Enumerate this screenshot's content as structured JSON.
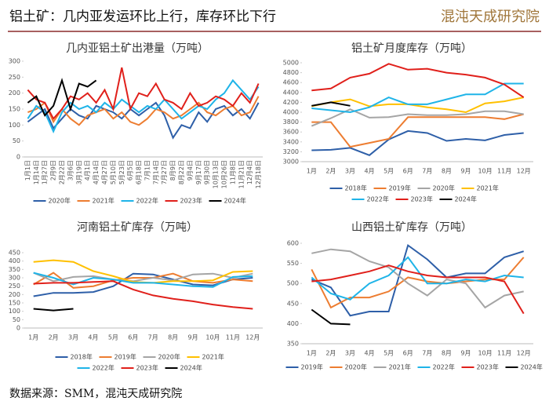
{
  "header": {
    "title": "铝土矿：几内亚发运环比上行，库存环比下行",
    "logo": "混沌天成研究院"
  },
  "footer": {
    "source": "数据来源：SMM，混沌天成研究院"
  },
  "chart_data": [
    {
      "type": "line",
      "title": "几内亚铝土矿出港量（万吨）",
      "categories": [
        "1月1日",
        "1月14日",
        "1月27日",
        "2月9日",
        "2月22日",
        "3月6日",
        "3月19日",
        "4月1日",
        "4月14日",
        "4月27日",
        "5月10日",
        "5月23日",
        "6月5日",
        "6月18日",
        "7月1日",
        "7月14日",
        "7月27日",
        "8月9日",
        "8月22日",
        "9月4日",
        "9月17日",
        "9月30日",
        "10月13日",
        "10月26日",
        "11月8日",
        "11月21日",
        "12月4日",
        "12月18日"
      ],
      "ylim": [
        0,
        300
      ],
      "yticks": [
        0,
        50,
        100,
        150,
        200,
        250,
        300
      ],
      "grid": false,
      "series": [
        {
          "name": "2020年",
          "color": "#2e5fa8",
          "values": [
            110,
            130,
            150,
            90,
            120,
            150,
            130,
            120,
            160,
            150,
            140,
            120,
            150,
            130,
            150,
            170,
            130,
            60,
            100,
            90,
            140,
            110,
            150,
            160,
            130,
            150,
            120,
            170
          ]
        },
        {
          "name": "2021年",
          "color": "#ed7d31",
          "values": [
            140,
            150,
            170,
            110,
            150,
            120,
            100,
            130,
            140,
            150,
            120,
            140,
            110,
            100,
            120,
            150,
            140,
            120,
            130,
            150,
            170,
            140,
            130,
            150,
            160,
            130,
            140,
            190
          ]
        },
        {
          "name": "2022年",
          "color": "#1fb4e8",
          "values": [
            120,
            160,
            140,
            80,
            140,
            170,
            150,
            160,
            140,
            170,
            150,
            180,
            160,
            140,
            160,
            150,
            180,
            150,
            120,
            140,
            160,
            150,
            180,
            200,
            240,
            210,
            180,
            220
          ]
        },
        {
          "name": "2023年",
          "color": "#e0201b",
          "values": [
            210,
            180,
            170,
            120,
            150,
            190,
            180,
            200,
            170,
            210,
            150,
            280,
            150,
            200,
            190,
            230,
            180,
            170,
            150,
            200,
            160,
            170,
            190,
            180,
            160,
            200,
            170,
            230
          ]
        },
        {
          "name": "2024年",
          "color": "#000000",
          "values": [
            170,
            190,
            130,
            160,
            240,
            150,
            230,
            220,
            240,
            null,
            null,
            null,
            null,
            null,
            null,
            null,
            null,
            null,
            null,
            null,
            null,
            null,
            null,
            null,
            null,
            null,
            null,
            null
          ]
        }
      ]
    },
    {
      "type": "line",
      "title": "铝土矿月度库存（万吨）",
      "categories": [
        "1月",
        "2月",
        "3月",
        "4月",
        "5月",
        "6月",
        "7月",
        "8月",
        "9月",
        "10月",
        "11月",
        "12月"
      ],
      "ylim": [
        3000,
        5000
      ],
      "yticks": [
        3000,
        3200,
        3400,
        3600,
        3800,
        4000,
        4200,
        4400,
        4600,
        4800,
        5000
      ],
      "grid": false,
      "series": [
        {
          "name": "2018年",
          "color": "#2e5fa8",
          "values": [
            3230,
            3240,
            3280,
            3130,
            3450,
            3620,
            3580,
            3420,
            3460,
            3430,
            3540,
            3580
          ]
        },
        {
          "name": "2019年",
          "color": "#ed7d31",
          "values": [
            3800,
            3800,
            3300,
            3380,
            3460,
            3900,
            3900,
            3900,
            3900,
            3900,
            3860,
            3960
          ]
        },
        {
          "name": "2020年",
          "color": "#a5a5a5",
          "values": [
            3720,
            3880,
            4060,
            3890,
            3900,
            3960,
            3940,
            3940,
            3960,
            4020,
            4020,
            3960
          ]
        },
        {
          "name": "2021年",
          "color": "#ffc000",
          "values": [
            4120,
            4200,
            4260,
            4120,
            4160,
            4160,
            4100,
            4060,
            4000,
            4180,
            4220,
            4300
          ]
        },
        {
          "name": "2022年",
          "color": "#1fb4e8",
          "values": [
            4080,
            4040,
            4000,
            4100,
            4300,
            4160,
            4160,
            4260,
            4360,
            4360,
            4580,
            4580
          ]
        },
        {
          "name": "2023年",
          "color": "#e0201b",
          "values": [
            4440,
            4480,
            4700,
            4780,
            4980,
            4860,
            4880,
            4800,
            4760,
            4700,
            4560,
            4300
          ]
        },
        {
          "name": "2024年",
          "color": "#000000",
          "values": [
            4130,
            4200,
            4130,
            null,
            null,
            null,
            null,
            null,
            null,
            null,
            null,
            null
          ]
        }
      ]
    },
    {
      "type": "line",
      "title": "河南铝土矿库存（万吨）",
      "categories": [
        "1月",
        "2月",
        "3月",
        "4月",
        "5月",
        "6月",
        "7月",
        "8月",
        "9月",
        "10月",
        "11月",
        "12月"
      ],
      "ylim": [
        0,
        450
      ],
      "yticks": [
        0,
        50,
        100,
        150,
        200,
        250,
        300,
        350,
        400,
        450
      ],
      "grid": false,
      "series": [
        {
          "name": "2018年",
          "color": "#2e5fa8",
          "values": [
            190,
            210,
            210,
            215,
            250,
            325,
            320,
            290,
            260,
            255,
            290,
            300
          ]
        },
        {
          "name": "2019年",
          "color": "#ed7d31",
          "values": [
            260,
            330,
            240,
            250,
            285,
            300,
            300,
            325,
            280,
            270,
            290,
            280
          ]
        },
        {
          "name": "2020年",
          "color": "#a5a5a5",
          "values": [
            330,
            280,
            305,
            310,
            290,
            280,
            300,
            285,
            320,
            325,
            300,
            325
          ]
        },
        {
          "name": "2021年",
          "color": "#ffc000",
          "values": [
            395,
            405,
            395,
            340,
            310,
            275,
            270,
            280,
            280,
            285,
            335,
            340
          ]
        },
        {
          "name": "2022年",
          "color": "#1fb4e8",
          "values": [
            330,
            300,
            260,
            300,
            290,
            270,
            270,
            260,
            250,
            245,
            305,
            310
          ]
        },
        {
          "name": "2023年",
          "color": "#e0201b",
          "values": [
            265,
            270,
            270,
            275,
            280,
            230,
            195,
            175,
            160,
            140,
            125,
            115
          ]
        },
        {
          "name": "2024年",
          "color": "#000000",
          "values": [
            115,
            105,
            115,
            null,
            null,
            null,
            null,
            null,
            null,
            null,
            null,
            null
          ]
        }
      ]
    },
    {
      "type": "line",
      "title": "山西铝土矿库存（万吨）",
      "categories": [
        "1月",
        "2月",
        "3月",
        "4月",
        "5月",
        "6月",
        "7月",
        "8月",
        "9月",
        "10月",
        "11月",
        "12月"
      ],
      "ylim": [
        350,
        600
      ],
      "yticks": [
        350,
        400,
        450,
        500,
        550,
        600
      ],
      "grid": false,
      "series": [
        {
          "name": "2019年",
          "color": "#2e5fa8",
          "values": [
            510,
            490,
            420,
            430,
            430,
            595,
            560,
            515,
            525,
            525,
            565,
            580
          ]
        },
        {
          "name": "2020年",
          "color": "#ed7d31",
          "values": [
            535,
            440,
            465,
            465,
            480,
            515,
            505,
            500,
            505,
            510,
            510,
            565
          ]
        },
        {
          "name": "2021年",
          "color": "#a5a5a5",
          "values": [
            575,
            585,
            580,
            555,
            540,
            500,
            470,
            510,
            500,
            440,
            470,
            480
          ]
        },
        {
          "name": "2022年",
          "color": "#1fb4e8",
          "values": [
            515,
            475,
            460,
            500,
            520,
            565,
            500,
            500,
            510,
            505,
            520,
            515
          ]
        },
        {
          "name": "2023年",
          "color": "#e0201b",
          "values": [
            505,
            510,
            520,
            530,
            545,
            530,
            520,
            515,
            515,
            515,
            505,
            425
          ]
        },
        {
          "name": "2024年",
          "color": "#000000",
          "values": [
            435,
            400,
            398,
            null,
            null,
            null,
            null,
            null,
            null,
            null,
            null,
            null
          ]
        }
      ]
    }
  ]
}
